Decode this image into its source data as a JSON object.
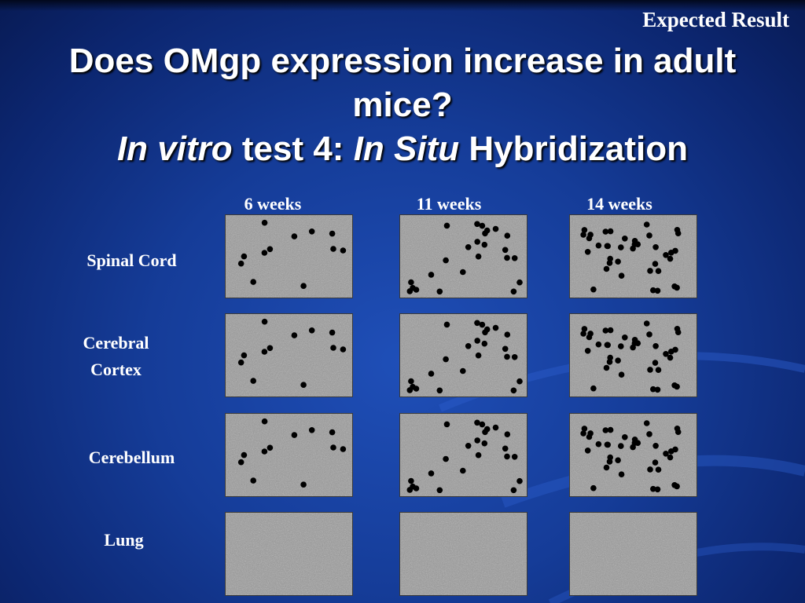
{
  "header": {
    "corner_label": "Expected Result",
    "title_line1": "Does OMgp expression increase in adult",
    "title_line2": "mice?",
    "title_line3_italic_a": "In vitro",
    "title_line3_a": " test 4: ",
    "title_line3_italic_b": "In Situ",
    "title_line3_b": " Hybridization"
  },
  "columns": [
    "6 weeks",
    "11 weeks",
    "14 weeks"
  ],
  "rows": [
    {
      "line1": "Spinal Cord",
      "line2": ""
    },
    {
      "line1": "Cerebral",
      "line2": "Cortex"
    },
    {
      "line1": "Cerebellum",
      "line2": ""
    },
    {
      "line1": "Lung",
      "line2": ""
    }
  ],
  "colors": {
    "background": "#153c98",
    "text": "#ffffff",
    "tissue": "#9a9a9a",
    "signal_dot": "#000000"
  }
}
